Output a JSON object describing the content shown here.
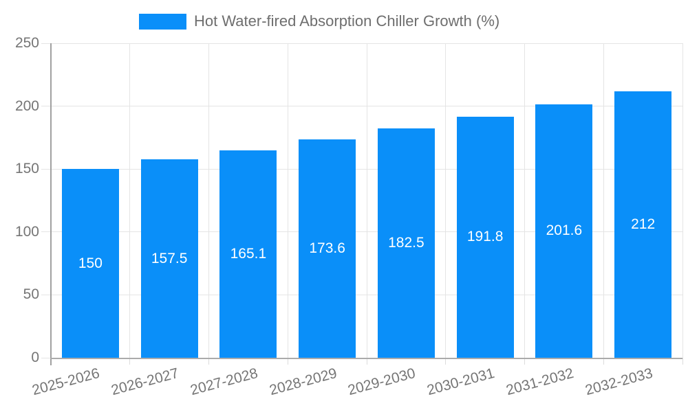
{
  "legend": {
    "label": "Hot Water-fired Absorption Chiller Growth (%)"
  },
  "colors": {
    "bar": "#0a8ff9",
    "grid": "#e4e4e4",
    "axis": "#a6a6a6",
    "tick_text": "#757575",
    "legend_text": "#6e6e6e",
    "value_label": "#ffffff",
    "background": "#ffffff"
  },
  "chart_data": {
    "type": "bar",
    "title": "Hot Water-fired Absorption Chiller Growth (%)",
    "categories": [
      "2025-2026",
      "2026-2027",
      "2027-2028",
      "2028-2029",
      "2029-2030",
      "2030-2031",
      "2031-2032",
      "2032-2033"
    ],
    "values": [
      150,
      157.5,
      165.1,
      173.6,
      182.5,
      191.8,
      201.6,
      212
    ],
    "value_labels": [
      "150",
      "157.5",
      "165.1",
      "173.6",
      "182.5",
      "191.8",
      "201.6",
      "212"
    ],
    "xlabel": "",
    "ylabel": "",
    "ylim": [
      0,
      250
    ],
    "yticks": [
      0,
      50,
      100,
      150,
      200,
      250
    ],
    "grid": true,
    "legend_position": "top",
    "value_label_position": "bar-center"
  }
}
